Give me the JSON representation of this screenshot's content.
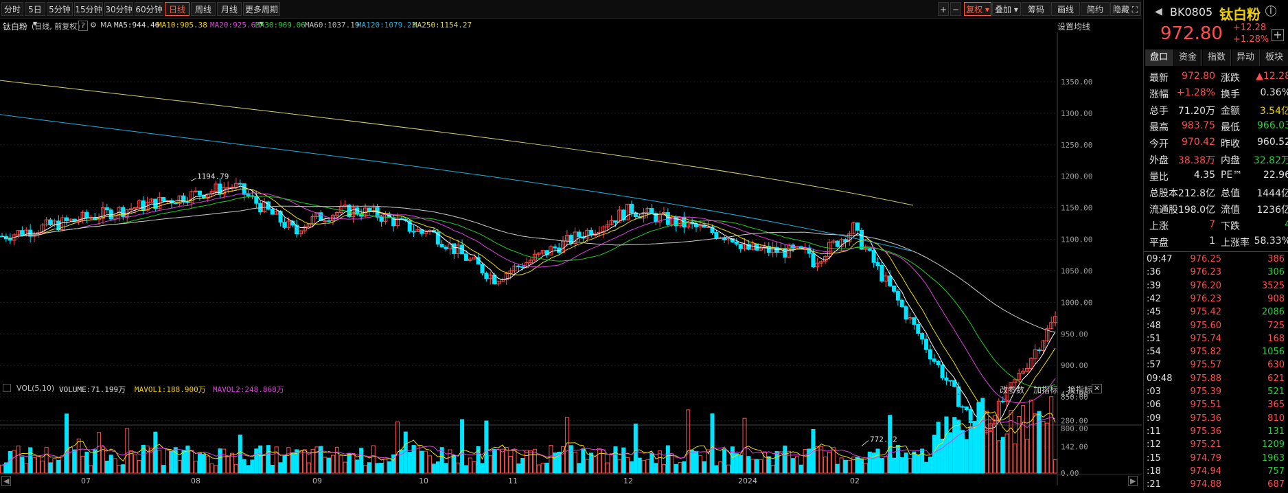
{
  "toolbar": {
    "periods": [
      "分时",
      "5日",
      "5分钟",
      "15分钟",
      "30分钟",
      "60分钟",
      "日线",
      "周线",
      "月线",
      "更多周期"
    ],
    "active_period": "日线",
    "right_buttons": [
      "复权",
      "叠加",
      "筹码",
      "画线",
      "简约",
      "隐藏"
    ]
  },
  "info": {
    "name": "钛白粉",
    "mode": "(日线, 前复权)",
    "ma_label": "MA",
    "ma5": "MA5:944.46",
    "ma10": "MA10:905.38",
    "ma20": "MA20:925.63",
    "ma30": "MA30:969.06",
    "ma60": "MA60:1037.19",
    "ma120": "MA120:1079.23",
    "ma250": "MA250:1154.27",
    "settings": "设置均线"
  },
  "volume_info": {
    "label": "VOL(5,10)",
    "volume": "VOLUME:71.199万",
    "mavol1": "MAVOL1:188.900万",
    "mavol2": "MAVOL2:248.868万",
    "params": "改参数",
    "add_indicator": "加指标",
    "switch_indicator": "换指标"
  },
  "price_axis": [
    "1350.00",
    "1300.00",
    "1250.00",
    "1200.00",
    "1150.00",
    "1100.00",
    "1050.00",
    "1000.00",
    "950.00",
    "900.00",
    "850.00",
    "800.00"
  ],
  "vol_axis": [
    "422.00",
    "280.00",
    "142.00",
    "0.00"
  ],
  "x_labels": [
    "07",
    "08",
    "09",
    "10",
    "11",
    "12",
    "2024",
    "02"
  ],
  "annotations": {
    "high": "1194.79",
    "low": "772.32"
  },
  "colors": {
    "up": "#ff4d4d",
    "down": "#00e5ff",
    "ma5": "#ffffff",
    "ma10": "#f0e000",
    "ma20": "#e040e0",
    "ma30": "#20d020",
    "ma60": "#cccccc",
    "ma120": "#20b0e0",
    "ma250": "#d8d070"
  },
  "right_panel": {
    "code": "BK0805",
    "name": "钛白粉",
    "price": "972.80",
    "change": "+12.28",
    "change_pct": "+1.28%",
    "tabs": [
      "盘口",
      "资金",
      "指数",
      "异动",
      "板块"
    ],
    "stats": [
      [
        "最新",
        "972.80",
        "涨跌",
        "▲12.28"
      ],
      [
        "涨幅",
        "+1.28%",
        "换手",
        "0.36%"
      ],
      [
        "总手",
        "71.20万",
        "金额",
        "3.54亿"
      ],
      [
        "最高",
        "983.75",
        "最低",
        "966.03"
      ],
      [
        "今开",
        "970.42",
        "昨收",
        "960.52"
      ],
      [
        "外盘",
        "38.38万",
        "内盘",
        "32.82万"
      ],
      [
        "量比",
        "4.35",
        "PE™",
        "22.96"
      ],
      [
        "总股本",
        "212.8亿",
        "总值",
        "1444亿"
      ],
      [
        "流通股",
        "198.0亿",
        "流值",
        "1236亿"
      ],
      [
        "上涨",
        "7",
        "下跌",
        "4"
      ],
      [
        "平盘",
        "1",
        "上涨率",
        "58.33%"
      ]
    ],
    "ticks": [
      [
        "09:47",
        "976.25",
        "386"
      ],
      [
        ":36",
        "976.23",
        "306"
      ],
      [
        ":39",
        "976.20",
        "3525"
      ],
      [
        ":42",
        "976.23",
        "908"
      ],
      [
        ":45",
        "975.42",
        "2086"
      ],
      [
        ":48",
        "975.60",
        "725"
      ],
      [
        ":51",
        "975.74",
        "168"
      ],
      [
        ":54",
        "975.82",
        "1056"
      ],
      [
        ":57",
        "975.57",
        "630"
      ],
      [
        "09:48",
        "975.88",
        "621"
      ],
      [
        ":03",
        "975.39",
        "521"
      ],
      [
        ":06",
        "975.51",
        "365"
      ],
      [
        ":09",
        "975.36",
        "810"
      ],
      [
        ":11",
        "975.36",
        "131"
      ],
      [
        ":12",
        "975.21",
        "1209"
      ],
      [
        ":15",
        "974.79",
        "1963"
      ],
      [
        ":18",
        "974.94",
        "757"
      ],
      [
        ":21",
        "974.88",
        "687"
      ]
    ]
  }
}
